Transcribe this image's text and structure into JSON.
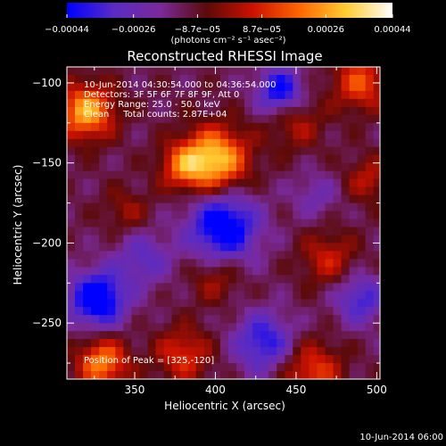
{
  "chart_data": {
    "type": "heatmap",
    "title": "Reconstructed RHESSI Image",
    "xlabel": "Heliocentric X (arcsec)",
    "ylabel": "Heliocentric Y (arcsec)",
    "xlim": [
      308,
      502
    ],
    "ylim": [
      -285,
      -90
    ],
    "x_ticks": [
      350,
      400,
      450,
      500
    ],
    "y_ticks": [
      -100,
      -150,
      -200,
      -250
    ],
    "x_tick_labels": [
      "350",
      "400",
      "450",
      "500"
    ],
    "y_tick_labels": [
      "−100",
      "−150",
      "−200",
      "−250"
    ],
    "colorbar": {
      "min": -0.00044,
      "max": 0.00044,
      "tick_labels": [
        "−0.00044",
        "−0.00026",
        "−8.7e−05",
        "8.7e−05",
        "0.00026",
        "0.00044"
      ],
      "tick_values": [
        -0.00044,
        -0.00026,
        -8.7e-05,
        8.7e-05,
        0.00026,
        0.00044
      ],
      "unit_label": "(photons cm⁻² s⁻¹ asec⁻²)",
      "colors": [
        "#0000ff",
        "#5a2bc4",
        "#7a2a9a",
        "#5c0a0a",
        "#cc1100",
        "#ff6600",
        "#ffcc33",
        "#ffffff"
      ]
    },
    "annotations": [
      "10-Jun-2014 04:30:54.000 to 04:36:54.000",
      "Detectors: 3F 5F 6F 7F 8F 9F, Att 0",
      "Energy Range: 25.0 - 50.0 keV",
      "Clean     Total counts: 2.87E+04"
    ],
    "peak_label": "Position of Peak = [325,-120]",
    "peak": [
      325,
      -120
    ],
    "features": [
      {
        "x": 320,
        "y": -118,
        "v": 0.0004,
        "s": 12
      },
      {
        "x": 400,
        "y": -148,
        "v": 0.00044,
        "s": 14
      },
      {
        "x": 380,
        "y": -152,
        "v": 0.00025,
        "s": 10
      },
      {
        "x": 490,
        "y": -100,
        "v": 0.00026,
        "s": 12
      },
      {
        "x": 450,
        "y": -125,
        "v": 0.00015,
        "s": 12
      },
      {
        "x": 330,
        "y": -275,
        "v": 0.00034,
        "s": 11
      },
      {
        "x": 380,
        "y": -270,
        "v": 0.00022,
        "s": 12
      },
      {
        "x": 460,
        "y": -280,
        "v": 0.00024,
        "s": 13
      },
      {
        "x": 470,
        "y": -210,
        "v": 0.00018,
        "s": 12
      },
      {
        "x": 400,
        "y": -222,
        "v": 0.00014,
        "s": 11
      },
      {
        "x": 345,
        "y": -180,
        "v": 0.00012,
        "s": 10
      },
      {
        "x": 495,
        "y": -160,
        "v": 0.00016,
        "s": 10
      },
      {
        "x": 405,
        "y": -190,
        "v": -0.0004,
        "s": 15
      },
      {
        "x": 327,
        "y": -235,
        "v": -0.00042,
        "s": 12
      },
      {
        "x": 430,
        "y": -262,
        "v": -0.00028,
        "s": 13
      },
      {
        "x": 440,
        "y": -105,
        "v": -0.00034,
        "s": 10
      },
      {
        "x": 490,
        "y": -235,
        "v": -0.00024,
        "s": 11
      },
      {
        "x": 355,
        "y": -210,
        "v": -0.00018,
        "s": 12
      },
      {
        "x": 462,
        "y": -170,
        "v": -0.00012,
        "s": 10
      }
    ]
  },
  "footer": {
    "timestamp": "10-Jun-2014 06:00"
  }
}
